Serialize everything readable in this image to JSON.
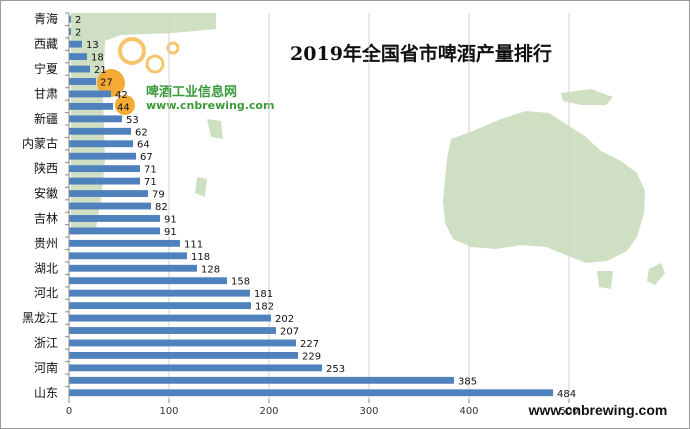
{
  "chart_data": {
    "type": "bar",
    "orientation": "horizontal",
    "title": "2019年全国省市啤酒产量排行",
    "xlabel": "",
    "ylabel": "",
    "xlim": [
      0,
      600
    ],
    "x_ticks": [
      "0",
      "100",
      "200",
      "300",
      "400",
      "500"
    ],
    "categories": [
      "山东",
      "",
      "河南",
      "",
      "浙江",
      "",
      "黑龙江",
      "",
      "河北",
      "",
      "湖北",
      "",
      "贵州",
      "",
      "吉林",
      "",
      "安徽",
      "",
      "陕西",
      "",
      "内蒙古",
      "",
      "新疆",
      "",
      "甘肃",
      "",
      "宁夏",
      "",
      "西藏",
      "",
      "青海"
    ],
    "values": [
      484,
      385,
      253,
      229,
      227,
      207,
      202,
      182,
      181,
      158,
      128,
      118,
      111,
      91,
      91,
      82,
      79,
      71,
      71,
      67,
      64,
      62,
      53,
      44,
      42,
      27,
      21,
      18,
      13,
      2,
      2
    ],
    "bar_color": "#4f81bd",
    "legend": "none"
  },
  "watermark": {
    "brand_name": "啤酒工业信息网",
    "brand_url_small": "www.cnbrewing.com",
    "footer_url": "www.cnbrewing.com"
  },
  "colors": {
    "map_land": "#c9dcbc",
    "map_land_edge": "#a9c498",
    "bubble_orange": "#f39c12",
    "bubble_ring": "#f7c56b"
  }
}
